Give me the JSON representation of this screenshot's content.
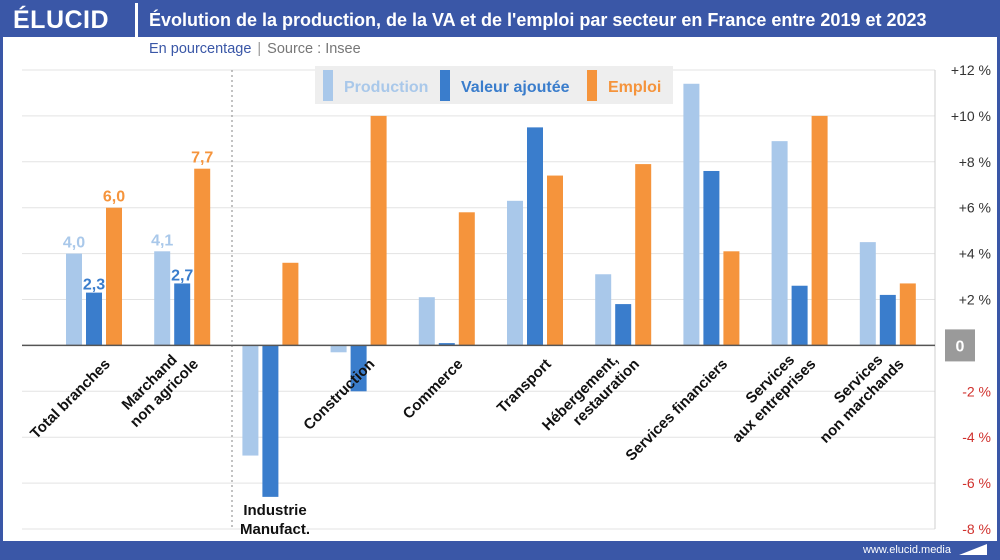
{
  "header": {
    "logo": "ÉLUCID",
    "title": "Évolution de la production, de la VA et de l'emploi par secteur en France entre 2019 et 2023",
    "unit": "En pourcentage",
    "separator": "|",
    "source": "Source : Insee"
  },
  "footer": {
    "url": "www.elucid.media"
  },
  "colors": {
    "production": "#a9c8ea",
    "valeur_ajoutee": "#3a7dcc",
    "emploi": "#f5943c",
    "brand": "#3a57a7"
  },
  "chart_data": {
    "type": "bar",
    "categories": [
      [
        "Total branches"
      ],
      [
        "Marchand",
        "non agricole"
      ],
      [
        "Industrie",
        "Manufact."
      ],
      [
        "Construction"
      ],
      [
        "Commerce"
      ],
      [
        "Transport"
      ],
      [
        "Hébergement,",
        "restauration"
      ],
      [
        "Services financiers"
      ],
      [
        "Services",
        "aux entreprises"
      ],
      [
        "Services",
        "non marchands"
      ]
    ],
    "series": [
      {
        "name": "Production",
        "values": [
          4.0,
          4.1,
          -4.8,
          -0.3,
          2.1,
          6.3,
          3.1,
          11.4,
          8.9,
          4.5
        ]
      },
      {
        "name": "Valeur ajoutée",
        "values": [
          2.3,
          2.7,
          -6.6,
          -2.0,
          0.1,
          9.5,
          1.8,
          7.6,
          2.6,
          2.2
        ]
      },
      {
        "name": "Emploi",
        "values": [
          6.0,
          7.7,
          3.6,
          10.0,
          5.8,
          7.4,
          7.9,
          4.1,
          10.0,
          2.7
        ]
      }
    ],
    "data_labels": [
      {
        "category": 0,
        "series": 0,
        "text": "4,0"
      },
      {
        "category": 0,
        "series": 1,
        "text": "2,3"
      },
      {
        "category": 0,
        "series": 2,
        "text": "6,0"
      },
      {
        "category": 1,
        "series": 0,
        "text": "4,1"
      },
      {
        "category": 1,
        "series": 1,
        "text": "2,7"
      },
      {
        "category": 1,
        "series": 2,
        "text": "7,7"
      }
    ],
    "ylim": [
      -8,
      12
    ],
    "yticks": [
      {
        "v": 12,
        "label": "+12 %"
      },
      {
        "v": 10,
        "label": "+10 %"
      },
      {
        "v": 8,
        "label": "+8 %"
      },
      {
        "v": 6,
        "label": "+6 %"
      },
      {
        "v": 4,
        "label": "+4 %"
      },
      {
        "v": 2,
        "label": "+2 %"
      },
      {
        "v": 0,
        "label": "0"
      },
      {
        "v": -2,
        "label": "-2 %"
      },
      {
        "v": -4,
        "label": "-4 %"
      },
      {
        "v": -6,
        "label": "-6 %"
      },
      {
        "v": -8,
        "label": "-8 %"
      }
    ],
    "grid": true,
    "legend_position": "top"
  }
}
